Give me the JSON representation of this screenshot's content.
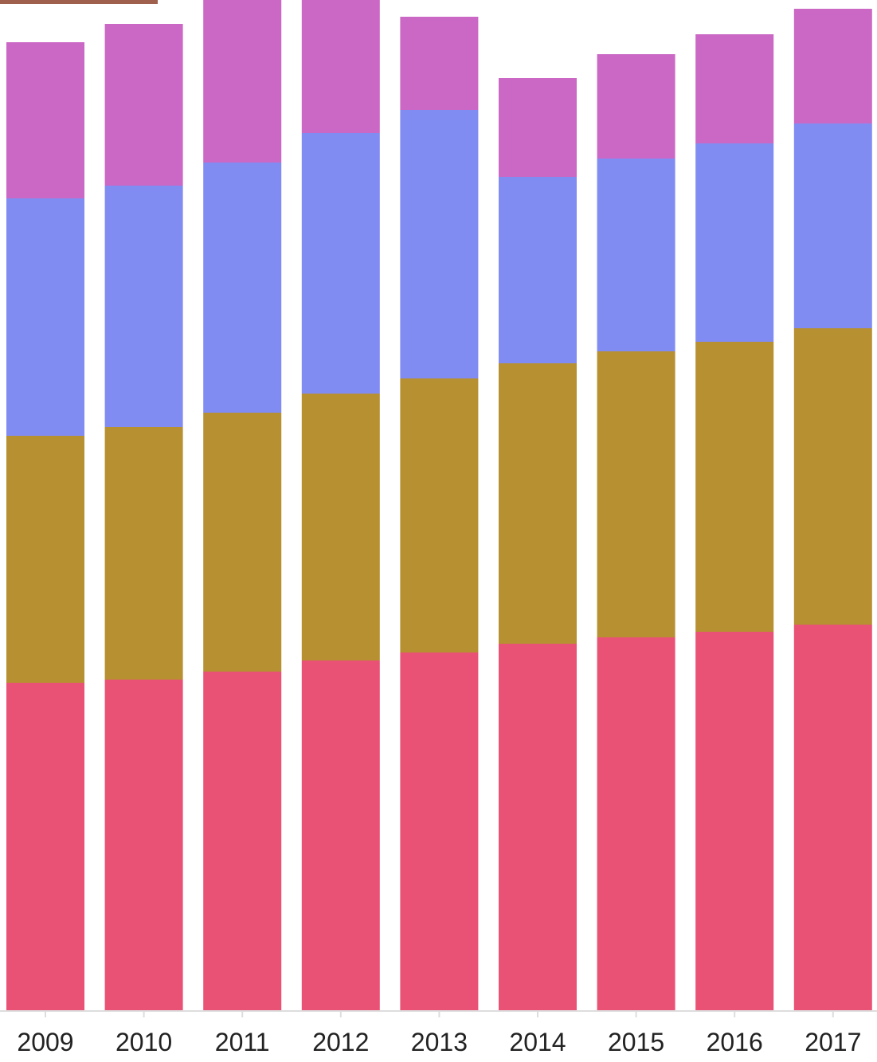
{
  "chart_data": {
    "type": "bar",
    "stacked": true,
    "categories": [
      "2009",
      "2010",
      "2011",
      "2012",
      "2013",
      "2014",
      "2015",
      "2016",
      "2017"
    ],
    "series": [
      {
        "color": "#ea5275",
        "values": [
          412,
          416,
          426,
          440,
          450,
          461,
          469,
          476,
          485
        ]
      },
      {
        "color": "#b79031",
        "values": [
          310,
          317,
          325,
          335,
          344,
          352,
          359,
          364,
          372
        ]
      },
      {
        "color": "#818cf3",
        "values": [
          298,
          303,
          314,
          327,
          337,
          234,
          242,
          249,
          257
        ]
      },
      {
        "color": "#cb68c5",
        "values": [
          196,
          203,
          207,
          214,
          117,
          124,
          131,
          137,
          144
        ]
      }
    ],
    "ylim": [
      0,
      1270
    ],
    "grid": false,
    "title": "",
    "xlabel": "",
    "ylabel": "",
    "legend": "none"
  }
}
